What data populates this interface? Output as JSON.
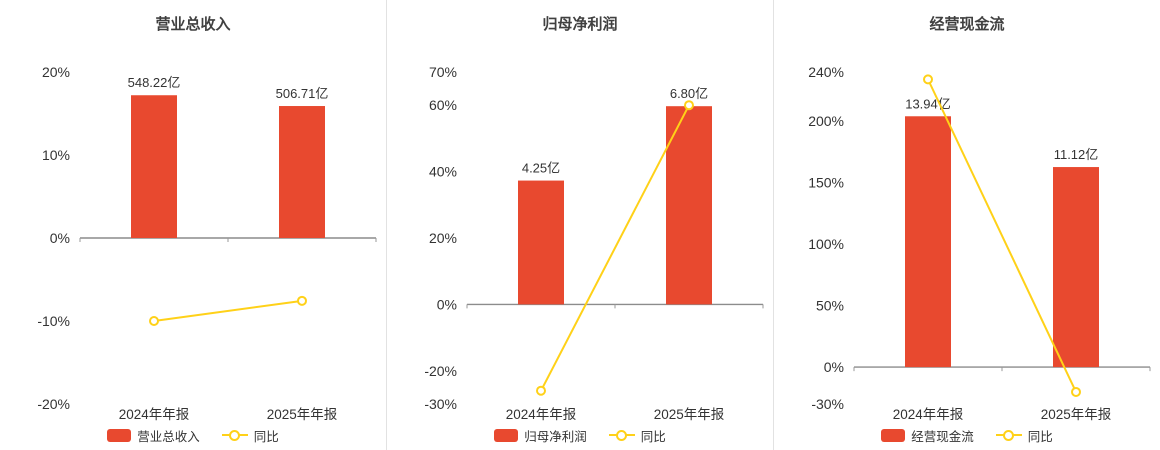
{
  "colors": {
    "bar": "#e8492f",
    "line": "#ffd118",
    "zero_line": "#8c8c8c",
    "axis_tick": "#999999",
    "text": "#333333",
    "title": "#404040"
  },
  "chart_data": [
    {
      "type": "bar+line",
      "title": "营业总收入",
      "categories": [
        "2024年年报",
        "2025年年报"
      ],
      "bar_series": {
        "name": "营业总收入",
        "values": [
          548.22,
          506.71
        ],
        "unit": "亿",
        "labels": [
          "548.22亿",
          "506.71亿"
        ],
        "axis_heights": [
          17.2,
          15.9
        ]
      },
      "line_series": {
        "name": "同比",
        "unit": "%",
        "values": [
          -10.0,
          -7.57
        ]
      },
      "y_axis": {
        "min": -20,
        "max": 20,
        "ticks": [
          20,
          10,
          0,
          -10,
          -20
        ],
        "tick_labels": [
          "20%",
          "10%",
          "0%",
          "-10%",
          "-20%"
        ]
      },
      "legend": [
        "营业总收入",
        "同比"
      ]
    },
    {
      "type": "bar+line",
      "title": "归母净利润",
      "categories": [
        "2024年年报",
        "2025年年报"
      ],
      "bar_series": {
        "name": "归母净利润",
        "values": [
          4.25,
          6.8
        ],
        "unit": "亿",
        "labels": [
          "4.25亿",
          "6.80亿"
        ],
        "axis_heights": [
          37.3,
          59.7
        ]
      },
      "line_series": {
        "name": "同比",
        "unit": "%",
        "values": [
          -26.0,
          60.0
        ]
      },
      "y_axis": {
        "min": -30,
        "max": 70,
        "ticks": [
          70,
          60,
          40,
          20,
          0,
          -20,
          -30
        ],
        "tick_labels": [
          "70%",
          "60%",
          "40%",
          "20%",
          "0%",
          "-20%",
          "-30%"
        ]
      },
      "legend": [
        "归母净利润",
        "同比"
      ]
    },
    {
      "type": "bar+line",
      "title": "经营现金流",
      "categories": [
        "2024年年报",
        "2025年年报"
      ],
      "bar_series": {
        "name": "经营现金流",
        "values": [
          13.94,
          11.12
        ],
        "unit": "亿",
        "labels": [
          "13.94亿",
          "11.12亿"
        ],
        "axis_heights": [
          204.0,
          162.7
        ]
      },
      "line_series": {
        "name": "同比",
        "unit": "%",
        "values": [
          234.0,
          -20.2
        ]
      },
      "y_axis": {
        "min": -30,
        "max": 240,
        "ticks": [
          240,
          200,
          150,
          100,
          50,
          0,
          -30
        ],
        "tick_labels": [
          "240%",
          "200%",
          "150%",
          "100%",
          "50%",
          "0%",
          "-30%"
        ]
      },
      "legend": [
        "经营现金流",
        "同比"
      ]
    }
  ]
}
